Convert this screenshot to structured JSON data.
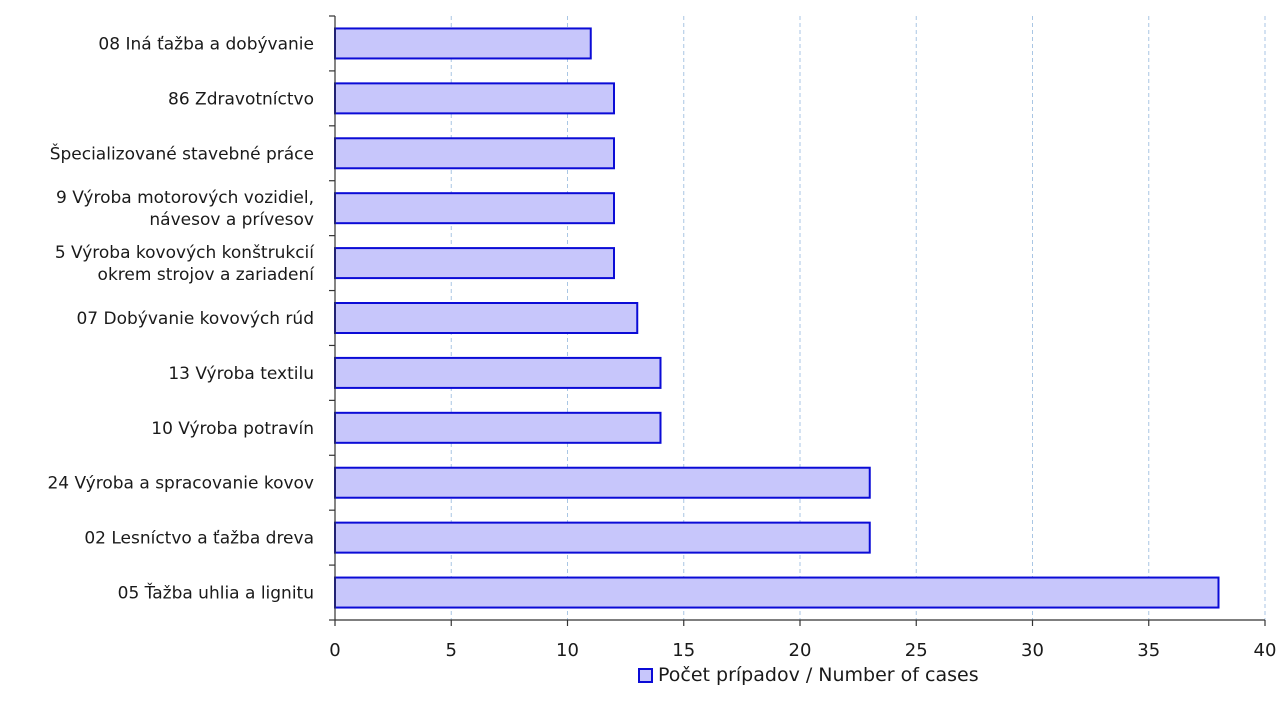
{
  "chart_data": {
    "type": "bar",
    "orientation": "horizontal",
    "categories": [
      "08 Iná ťažba a dobývanie",
      "86 Zdravotníctvo",
      "Špecializované stavebné práce",
      "9 Výroba motorových vozidiel, návesov a prívesov",
      "5 Výroba kovových konštrukcií okrem strojov a zariadení",
      "07 Dobývanie kovových rúd",
      "13 Výroba textilu",
      "10 Výroba potravín",
      "24 Výroba a spracovanie kovov",
      "02 Lesníctvo a ťažba dreva",
      "05 Ťažba uhlia a lignitu"
    ],
    "category_lines": [
      [
        "08 Iná ťažba a dobývanie"
      ],
      [
        "86 Zdravotníctvo"
      ],
      [
        "Špecializované stavebné práce"
      ],
      [
        "9 Výroba motorových vozidiel,",
        "návesov a prívesov"
      ],
      [
        "5 Výroba kovových konštrukcií",
        "okrem strojov a zariadení"
      ],
      [
        "07 Dobývanie kovových rúd"
      ],
      [
        "13 Výroba textilu"
      ],
      [
        "10 Výroba potravín"
      ],
      [
        "24 Výroba a spracovanie kovov"
      ],
      [
        "02 Lesníctvo a ťažba dreva"
      ],
      [
        "05 Ťažba uhlia a lignitu"
      ]
    ],
    "series": [
      {
        "name": "Počet prípadov / Number of cases",
        "values": [
          11,
          12,
          12,
          12,
          12,
          13,
          14,
          14,
          23,
          23,
          38
        ]
      }
    ],
    "xlim": [
      0,
      40
    ],
    "xticks": [
      "0",
      "5",
      "10",
      "15",
      "20",
      "25",
      "30",
      "35",
      "40"
    ],
    "grid": "vertical dashed",
    "legend_position": "bottom",
    "colors": {
      "bar_fill": "#c7c6fb",
      "bar_stroke": "#0b0bd6",
      "grid": "#a9c6e4",
      "axis": "#333333"
    }
  }
}
